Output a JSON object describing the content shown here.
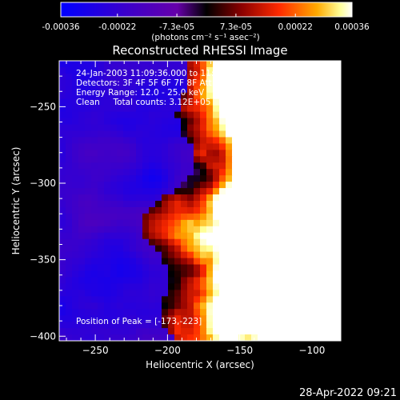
{
  "colorbar": {
    "ticks": [
      "-0.00036",
      "-0.00022",
      "-7.3e-05",
      "7.3e-05",
      "0.00022",
      "0.00036"
    ],
    "tick_values": [
      -0.00036,
      -0.00022,
      -7.3e-05,
      7.3e-05,
      0.00022,
      0.00036
    ],
    "unit_label": "(photons cm⁻² s⁻¹ asec⁻²)",
    "range": [
      -0.00036,
      0.00036
    ],
    "colors": [
      "#0000ff",
      "#3a00cc",
      "#6600aa",
      "#000000",
      "#8a0000",
      "#ff2a00",
      "#ffaa00",
      "#ffff99",
      "#ffffff"
    ]
  },
  "chart_data": {
    "type": "heatmap",
    "title": "Reconstructed RHESSI Image",
    "xlabel": "Heliocentric X (arcsec)",
    "ylabel": "Heliocentric Y (arcsec)",
    "xlim": [
      -275,
      -80
    ],
    "ylim": [
      -403,
      -220
    ],
    "xticks": [
      -250,
      -200,
      -150,
      -100
    ],
    "yticks": [
      -250,
      -300,
      -350,
      -400
    ],
    "xtick_labels": [
      "−250",
      "−200",
      "−150",
      "−100"
    ],
    "ytick_labels": [
      "−250",
      "−300",
      "−350",
      "−400"
    ],
    "peak": [
      -173,
      -223
    ],
    "annotations": {
      "time": "24-Jan-2003 11:09:36.000 to 11:15:36.000",
      "detectors": "Detectors: 3F 4F 5F 6F 7F 8F Att 0",
      "energy": "Energy Range: 12.0 - 25.0 keV",
      "clean": "Clean     Total counts: 3.12E+05",
      "peak_label": "Position of Peak = [-173,-223]"
    }
  },
  "footer": {
    "timestamp": "28-Apr-2022 09:21"
  }
}
